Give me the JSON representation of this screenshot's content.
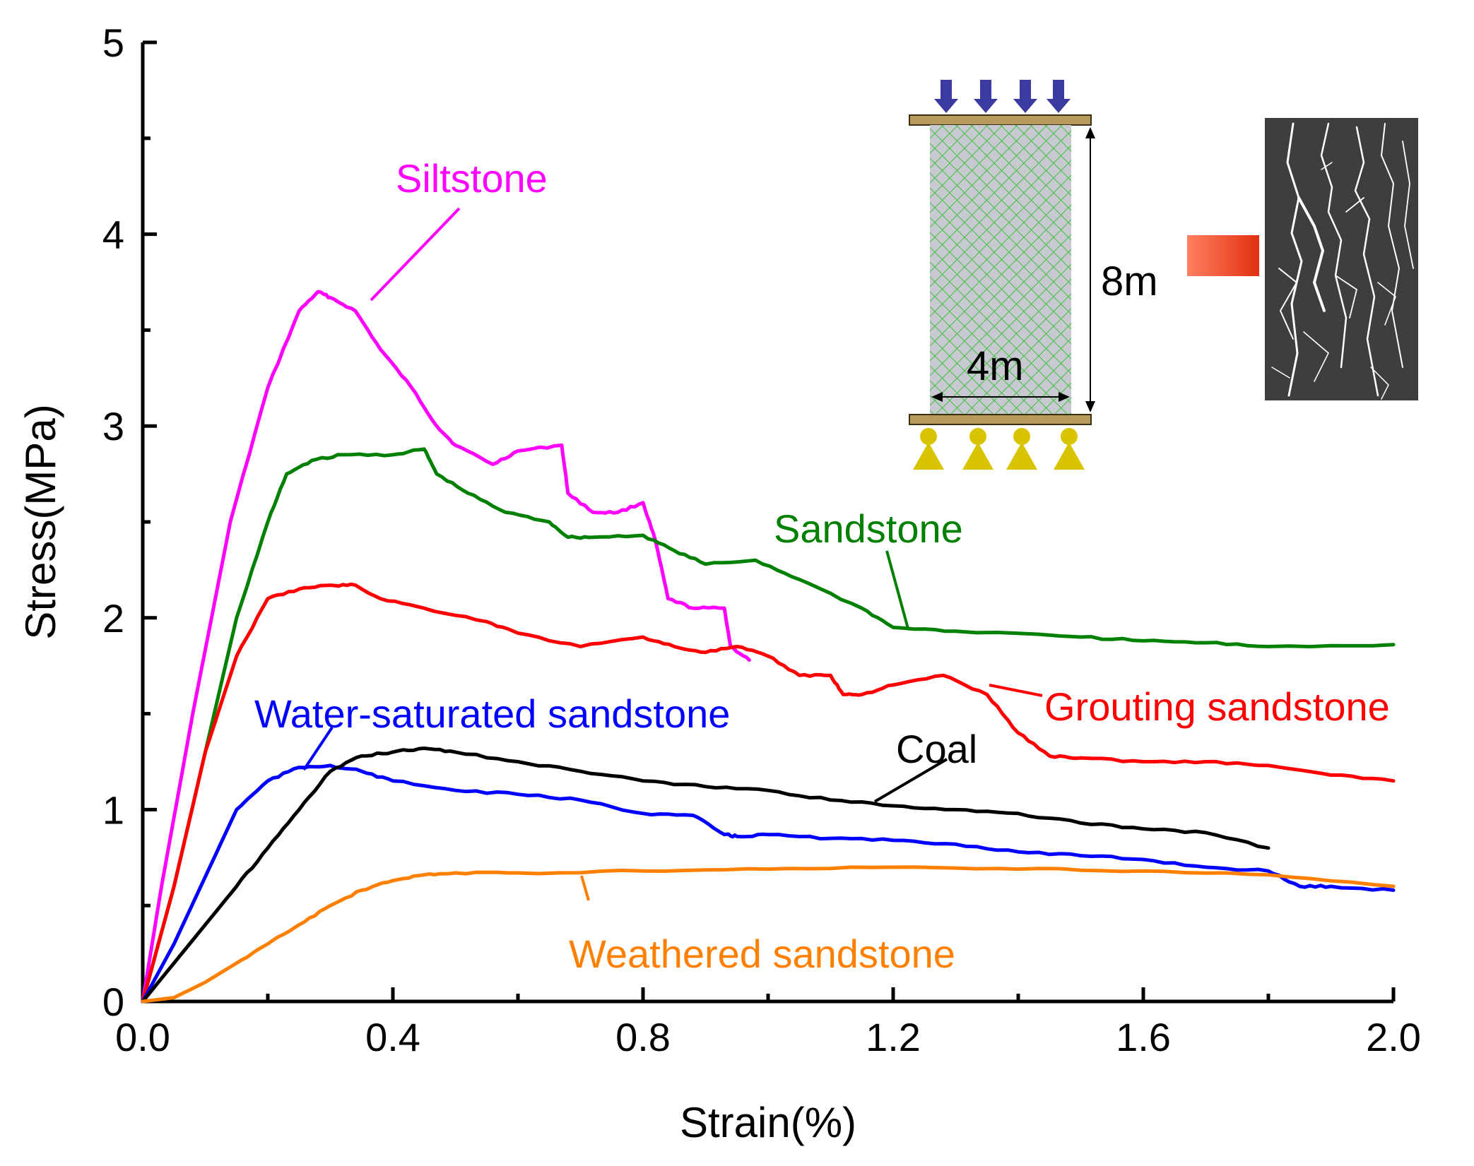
{
  "chart_data": {
    "type": "line",
    "title": "",
    "xlabel": "Strain(%)",
    "ylabel": "Stress(MPa)",
    "xlim": [
      0.0,
      2.0
    ],
    "ylim": [
      0,
      5
    ],
    "x_ticks": [
      "0.0",
      "0.4",
      "0.8",
      "1.2",
      "1.6",
      "2.0"
    ],
    "y_ticks": [
      "0",
      "1",
      "2",
      "3",
      "4",
      "5"
    ],
    "grid": false,
    "series": [
      {
        "name": "Siltstone",
        "color": "#ff00ff",
        "x": [
          0.0,
          0.03,
          0.08,
          0.14,
          0.2,
          0.25,
          0.28,
          0.3,
          0.34,
          0.38,
          0.43,
          0.47,
          0.5,
          0.56,
          0.6,
          0.67,
          0.68,
          0.72,
          0.76,
          0.8,
          0.82,
          0.84,
          0.88,
          0.93,
          0.94,
          0.97
        ],
        "y": [
          0.0,
          0.6,
          1.5,
          2.5,
          3.2,
          3.6,
          3.7,
          3.67,
          3.6,
          3.4,
          3.2,
          3.0,
          2.9,
          2.8,
          2.87,
          2.9,
          2.65,
          2.55,
          2.55,
          2.6,
          2.4,
          2.1,
          2.05,
          2.05,
          1.85,
          1.78
        ]
      },
      {
        "name": "Sandstone",
        "color": "#008000",
        "x": [
          0.0,
          0.05,
          0.1,
          0.15,
          0.2,
          0.23,
          0.27,
          0.32,
          0.4,
          0.45,
          0.47,
          0.52,
          0.58,
          0.65,
          0.68,
          0.72,
          0.8,
          0.85,
          0.9,
          0.98,
          1.05,
          1.15,
          1.2,
          1.3,
          1.5,
          1.6,
          1.7,
          1.8,
          2.0
        ],
        "y": [
          0.0,
          0.6,
          1.3,
          2.0,
          2.5,
          2.75,
          2.82,
          2.85,
          2.85,
          2.88,
          2.75,
          2.65,
          2.55,
          2.5,
          2.42,
          2.42,
          2.43,
          2.35,
          2.28,
          2.3,
          2.2,
          2.05,
          1.95,
          1.93,
          1.9,
          1.88,
          1.87,
          1.85,
          1.86
        ]
      },
      {
        "name": "Grouting sandstone",
        "color": "#ff0000",
        "x": [
          0.0,
          0.05,
          0.1,
          0.15,
          0.2,
          0.25,
          0.3,
          0.34,
          0.38,
          0.45,
          0.55,
          0.6,
          0.7,
          0.8,
          0.85,
          0.9,
          0.95,
          1.0,
          1.05,
          1.1,
          1.12,
          1.15,
          1.2,
          1.28,
          1.35,
          1.4,
          1.45,
          1.5,
          1.6,
          1.7,
          1.8,
          1.9,
          2.0
        ],
        "y": [
          0.0,
          0.6,
          1.3,
          1.8,
          2.1,
          2.15,
          2.17,
          2.17,
          2.1,
          2.05,
          1.98,
          1.92,
          1.85,
          1.9,
          1.85,
          1.82,
          1.85,
          1.8,
          1.7,
          1.7,
          1.6,
          1.6,
          1.65,
          1.7,
          1.6,
          1.4,
          1.28,
          1.27,
          1.25,
          1.25,
          1.23,
          1.18,
          1.15
        ]
      },
      {
        "name": "Water-saturated sandstone",
        "color": "#0000ff",
        "x": [
          0.0,
          0.05,
          0.1,
          0.15,
          0.2,
          0.25,
          0.3,
          0.35,
          0.4,
          0.5,
          0.6,
          0.7,
          0.8,
          0.88,
          0.93,
          0.95,
          1.0,
          1.1,
          1.2,
          1.3,
          1.4,
          1.5,
          1.6,
          1.7,
          1.8,
          1.85,
          1.9,
          2.0
        ],
        "y": [
          0.0,
          0.3,
          0.65,
          1.0,
          1.15,
          1.22,
          1.23,
          1.2,
          1.15,
          1.1,
          1.08,
          1.05,
          0.98,
          0.97,
          0.87,
          0.86,
          0.87,
          0.85,
          0.84,
          0.82,
          0.78,
          0.76,
          0.74,
          0.7,
          0.68,
          0.6,
          0.6,
          0.58
        ]
      },
      {
        "name": "Coal",
        "color": "#000000",
        "x": [
          0.0,
          0.05,
          0.1,
          0.15,
          0.2,
          0.25,
          0.3,
          0.35,
          0.4,
          0.45,
          0.5,
          0.6,
          0.7,
          0.8,
          0.9,
          1.0,
          1.1,
          1.2,
          1.3,
          1.4,
          1.5,
          1.6,
          1.7,
          1.8
        ],
        "y": [
          0.0,
          0.2,
          0.4,
          0.6,
          0.8,
          1.0,
          1.2,
          1.28,
          1.3,
          1.32,
          1.3,
          1.25,
          1.2,
          1.15,
          1.12,
          1.1,
          1.05,
          1.02,
          1.0,
          0.98,
          0.93,
          0.9,
          0.88,
          0.8
        ]
      },
      {
        "name": "Weathered sandstone",
        "color": "#ff8000",
        "x": [
          0.0,
          0.05,
          0.1,
          0.15,
          0.2,
          0.25,
          0.3,
          0.35,
          0.4,
          0.45,
          0.5,
          0.6,
          0.8,
          1.0,
          1.2,
          1.4,
          1.6,
          1.8,
          2.0
        ],
        "y": [
          0.0,
          0.02,
          0.1,
          0.2,
          0.3,
          0.4,
          0.5,
          0.58,
          0.63,
          0.66,
          0.67,
          0.67,
          0.68,
          0.69,
          0.7,
          0.69,
          0.68,
          0.66,
          0.6
        ]
      }
    ],
    "annotations": {
      "inset_height": "8m",
      "inset_width": "4m"
    }
  }
}
